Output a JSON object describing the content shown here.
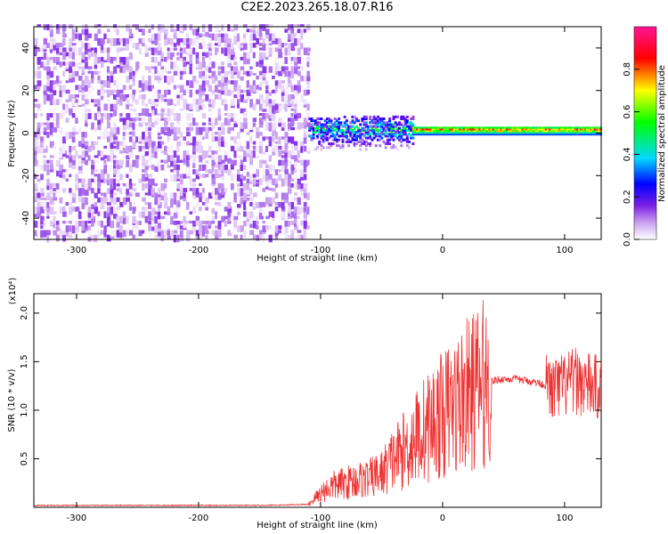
{
  "title": "C2E2.2023.265.18.07.R16",
  "chart_data": [
    {
      "type": "heatmap",
      "xlabel": "Height of straight line (km)",
      "ylabel": "Frequency (Hz)",
      "xlim": [
        -335,
        130
      ],
      "ylim": [
        -50,
        50
      ],
      "xticks": [
        -300,
        -200,
        -100,
        0,
        100
      ],
      "xtick_labels": [
        "-300",
        "-200",
        "-100",
        "0",
        "100"
      ],
      "yticks": [
        -40,
        -20,
        0,
        20,
        40
      ],
      "ytick_labels": [
        "-40",
        "-20",
        "0",
        "20",
        "40"
      ],
      "colorbar": {
        "label": "Normalized spectral amplitude",
        "range": [
          0.0,
          1.0
        ],
        "ticks": [
          0.0,
          0.2,
          0.4,
          0.6,
          0.8
        ],
        "tick_labels": [
          "0.0",
          "0.2",
          "0.4",
          "0.6",
          "0.8"
        ]
      },
      "regions": [
        {
          "x_range": [
            -335,
            -110
          ],
          "freq_range": [
            -50,
            50
          ],
          "amplitude_range": [
            0.0,
            0.15
          ]
        },
        {
          "x_range": [
            -110,
            -25
          ],
          "freq_range": [
            -8,
            8
          ],
          "amplitude_range": [
            0.1,
            0.6
          ]
        },
        {
          "x_range": [
            -25,
            130
          ],
          "freq_range": [
            -1,
            3
          ],
          "amplitude_range": [
            0.3,
            0.95
          ]
        }
      ]
    },
    {
      "type": "line",
      "xlabel": "Height of straight line (km)",
      "ylabel": "SNR (10 * v/v)",
      "y_multiplier": "(x10⁴)",
      "xlim": [
        -335,
        130
      ],
      "ylim": [
        0,
        2.2
      ],
      "xticks": [
        -300,
        -200,
        -100,
        0,
        100
      ],
      "xtick_labels": [
        "-300",
        "-200",
        "-100",
        "0",
        "100"
      ],
      "yticks": [
        0.5,
        1.0,
        1.5,
        2.0
      ],
      "ytick_labels": [
        "0.5",
        "1.0",
        "1.5",
        "2.0"
      ],
      "line_color": "#ee3333",
      "series": [
        {
          "x": [
            -335,
            -300,
            -250,
            -200,
            -150,
            -110,
            -100,
            -90,
            -80,
            -70,
            -60,
            -50,
            -40,
            -30,
            -20,
            -10,
            0,
            10,
            20,
            30,
            40,
            50,
            60,
            70,
            80,
            85,
            90,
            100,
            110,
            120,
            130
          ],
          "y": [
            0.02,
            0.02,
            0.02,
            0.02,
            0.02,
            0.03,
            0.15,
            0.22,
            0.25,
            0.28,
            0.3,
            0.35,
            0.5,
            0.6,
            0.75,
            0.85,
            0.95,
            1.05,
            1.15,
            1.25,
            1.3,
            1.32,
            1.32,
            1.3,
            1.28,
            1.25,
            1.2,
            1.25,
            1.3,
            1.25,
            1.22
          ]
        }
      ]
    }
  ]
}
